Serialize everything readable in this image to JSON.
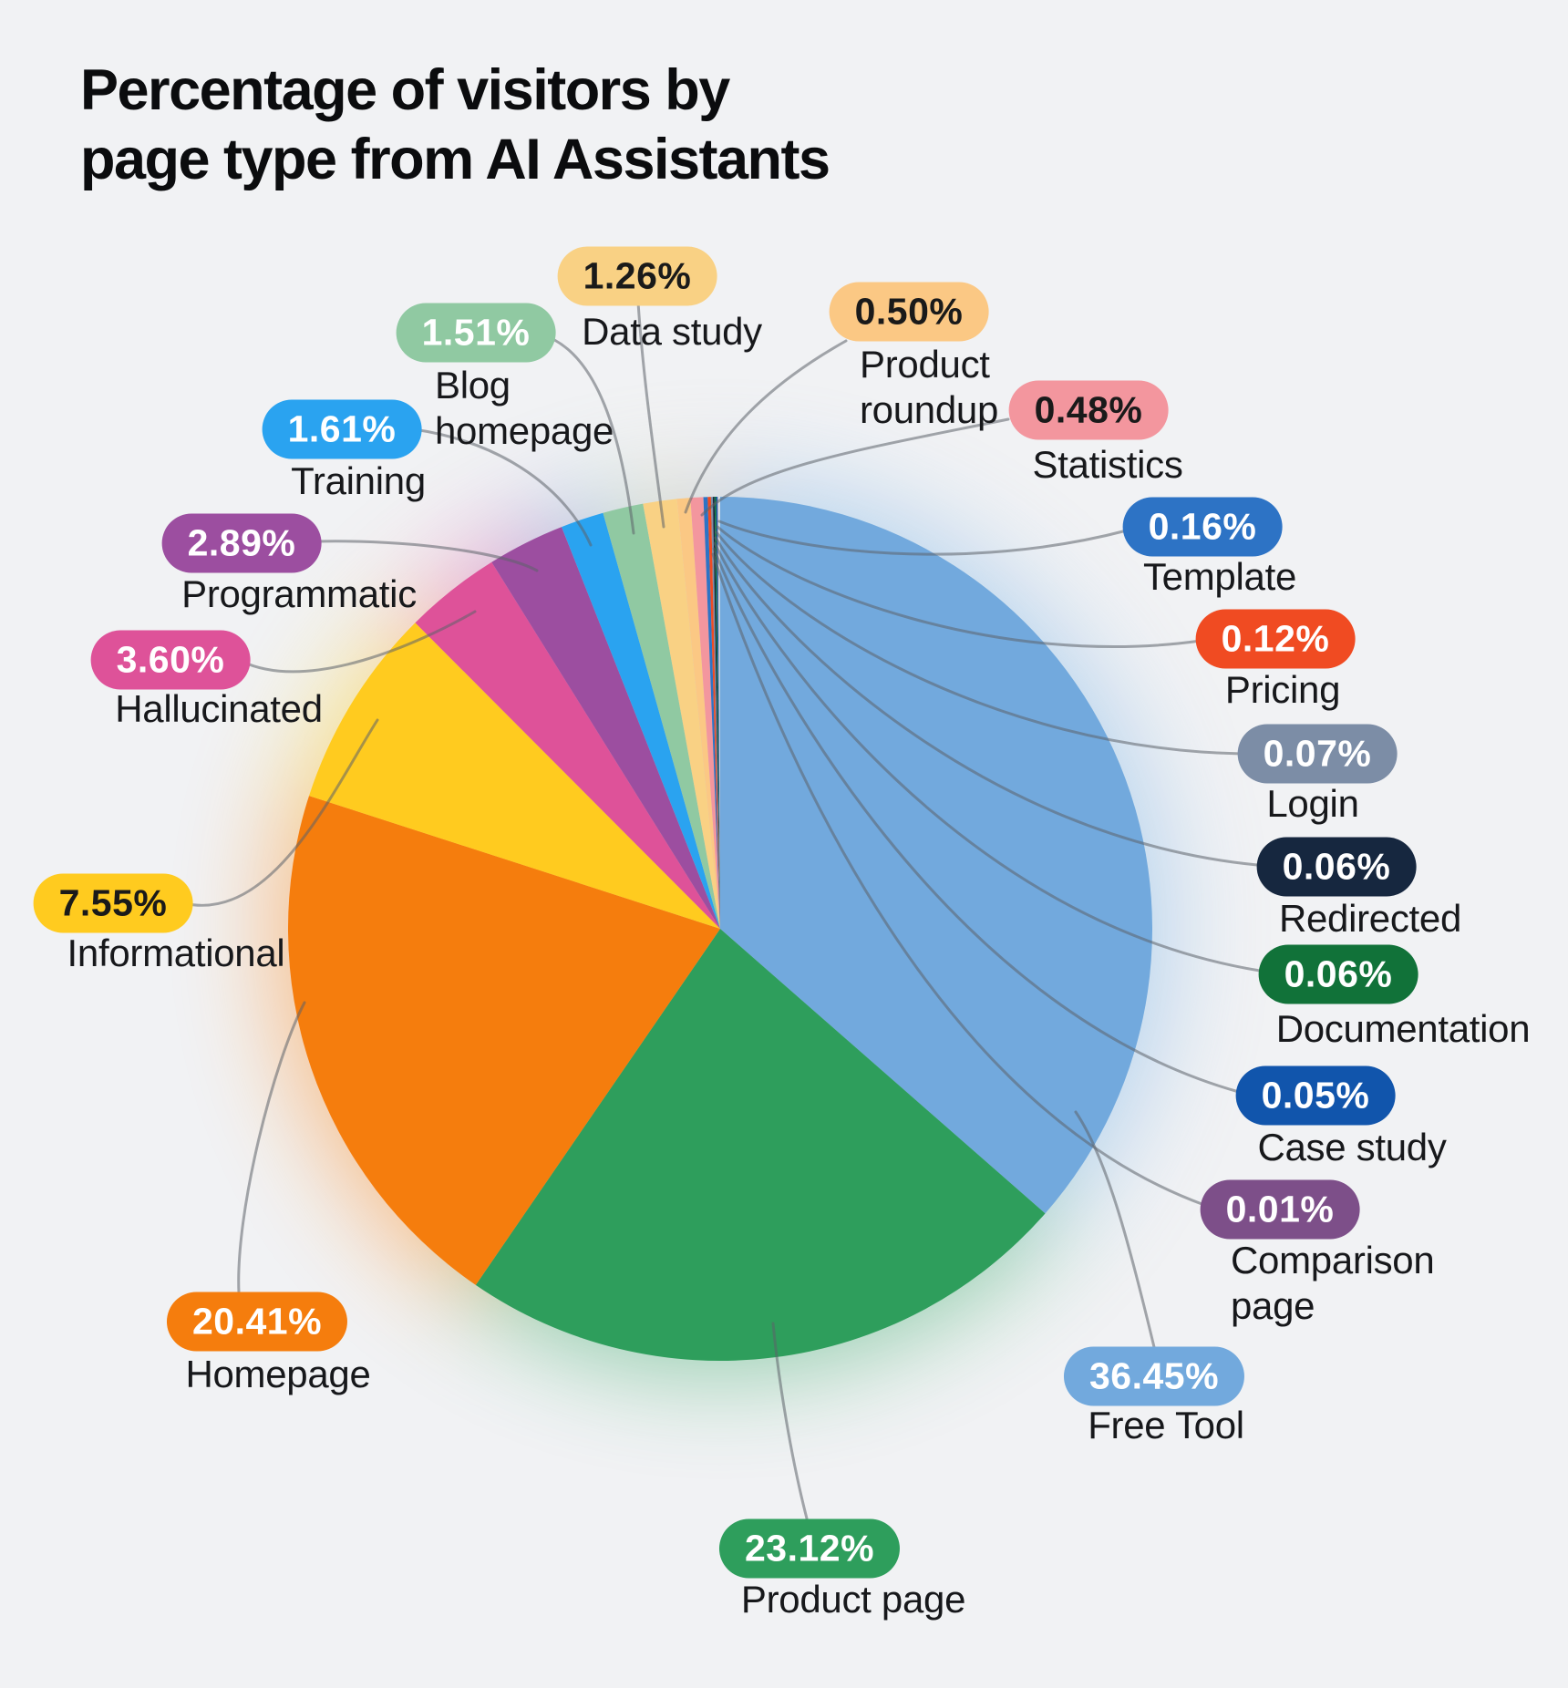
{
  "page": {
    "background_color": "#F1F2F4",
    "leader_line_color": "#8F959C"
  },
  "chart_data": {
    "type": "pie",
    "title": "Percentage of visitors by\npage type from AI Assistants",
    "unit": "%",
    "start_angle_deg": 0,
    "direction": "clockwise",
    "legend": "callout-badges-around-pie",
    "slices": [
      {
        "label": "Free Tool",
        "value": 36.45,
        "pct_label": "36.45%",
        "color": "#72A9DD",
        "text_color": "#FFFFFF"
      },
      {
        "label": "Product page",
        "value": 23.12,
        "pct_label": "23.12%",
        "color": "#2E9E5C",
        "text_color": "#FFFFFF"
      },
      {
        "label": "Homepage",
        "value": 20.41,
        "pct_label": "20.41%",
        "color": "#F57D0D",
        "text_color": "#FFFFFF"
      },
      {
        "label": "Informational",
        "value": 7.55,
        "pct_label": "7.55%",
        "color": "#FFCB1F",
        "text_color": "#1A1A1A"
      },
      {
        "label": "Hallucinated",
        "value": 3.6,
        "pct_label": "3.60%",
        "color": "#DE5299",
        "text_color": "#FFFFFF"
      },
      {
        "label": "Programmatic",
        "value": 2.89,
        "pct_label": "2.89%",
        "color": "#9C4EA0",
        "text_color": "#FFFFFF"
      },
      {
        "label": "Training",
        "value": 1.61,
        "pct_label": "1.61%",
        "color": "#2AA3F0",
        "text_color": "#FFFFFF"
      },
      {
        "label": "Blog\nhomepage",
        "value": 1.51,
        "pct_label": "1.51%",
        "color": "#90C9A2",
        "text_color": "#FFFFFF"
      },
      {
        "label": "Data study",
        "value": 1.26,
        "pct_label": "1.26%",
        "color": "#F9D184",
        "text_color": "#1A1A1A"
      },
      {
        "label": "Product\nroundup",
        "value": 0.5,
        "pct_label": "0.50%",
        "color": "#FBC884",
        "text_color": "#1A1A1A"
      },
      {
        "label": "Statistics",
        "value": 0.48,
        "pct_label": "0.48%",
        "color": "#F3969E",
        "text_color": "#1A1A1A"
      },
      {
        "label": "Template",
        "value": 0.16,
        "pct_label": "0.16%",
        "color": "#2D73C5",
        "text_color": "#FFFFFF"
      },
      {
        "label": "Pricing",
        "value": 0.12,
        "pct_label": "0.12%",
        "color": "#F04B22",
        "text_color": "#FFFFFF"
      },
      {
        "label": "Login",
        "value": 0.07,
        "pct_label": "0.07%",
        "color": "#7C8DA6",
        "text_color": "#FFFFFF"
      },
      {
        "label": "Redirected",
        "value": 0.06,
        "pct_label": "0.06%",
        "color": "#16273F",
        "text_color": "#FFFFFF"
      },
      {
        "label": "Documentation",
        "value": 0.06,
        "pct_label": "0.06%",
        "color": "#117239",
        "text_color": "#FFFFFF"
      },
      {
        "label": "Case study",
        "value": 0.05,
        "pct_label": "0.05%",
        "color": "#1155AC",
        "text_color": "#FFFFFF"
      },
      {
        "label": "Comparison\npage",
        "value": 0.01,
        "pct_label": "0.01%",
        "color": "#7D4F89",
        "text_color": "#FFFFFF"
      }
    ]
  }
}
